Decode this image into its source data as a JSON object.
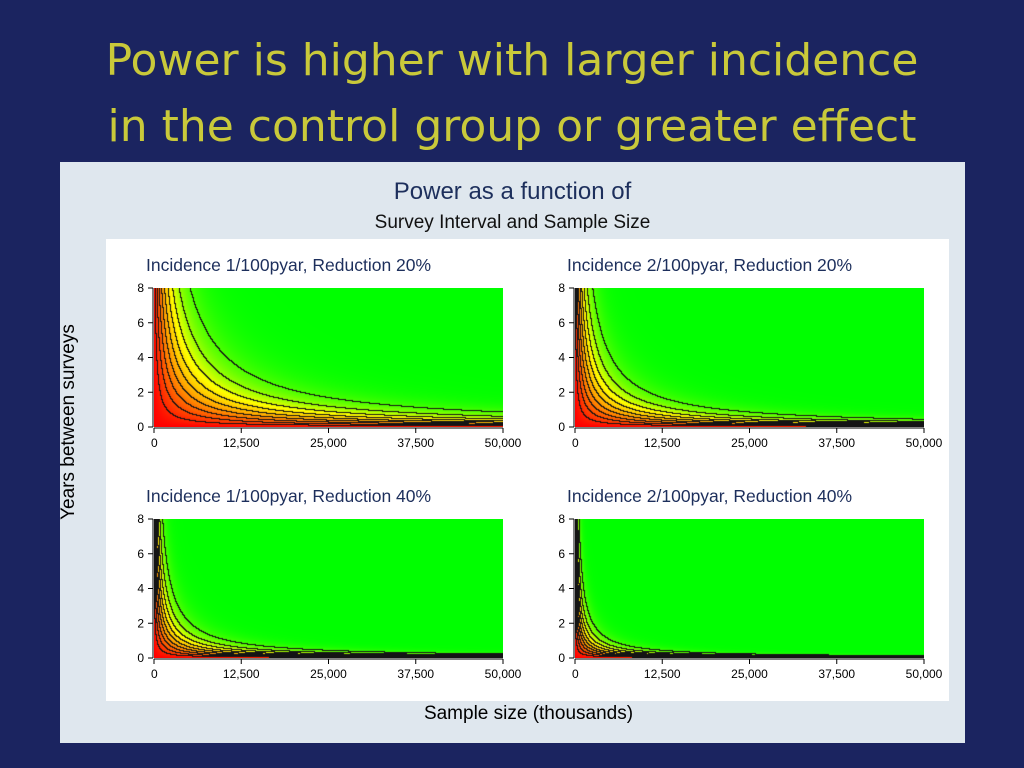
{
  "slide": {
    "title_line1": "Power is higher with larger incidence",
    "title_line2": "in the control group or greater effect",
    "background": "#1b2460",
    "title_color": "#c9c93a"
  },
  "chart_data": {
    "type": "heatmap",
    "title": "Power as a function of",
    "subtitle": "Survey Interval and Sample Size",
    "xlabel": "Sample size (thousands)",
    "ylabel": "Years between surveys",
    "xlim": [
      0,
      50000
    ],
    "ylim": [
      0,
      8
    ],
    "x_ticks": [
      "0",
      "12,500",
      "25,000",
      "37,500",
      "50,000"
    ],
    "y_ticks": [
      "0",
      "2",
      "4",
      "6",
      "8"
    ],
    "colorscale": [
      "#ff0000",
      "#ff7a00",
      "#ffff00",
      "#00ff00"
    ],
    "panels": [
      {
        "title": "Incidence 1/100pyar, Reduction 20%",
        "incidence_per_100pyar": 1,
        "reduction_pct": 20,
        "strength": 0.55
      },
      {
        "title": "Incidence 2/100pyar, Reduction 20%",
        "incidence_per_100pyar": 2,
        "reduction_pct": 20,
        "strength": 1.1
      },
      {
        "title": "Incidence 1/100pyar, Reduction 40%",
        "incidence_per_100pyar": 1,
        "reduction_pct": 40,
        "strength": 2.2
      },
      {
        "title": "Incidence 2/100pyar, Reduction 40%",
        "incidence_per_100pyar": 2,
        "reduction_pct": 40,
        "strength": 4.4
      }
    ]
  }
}
